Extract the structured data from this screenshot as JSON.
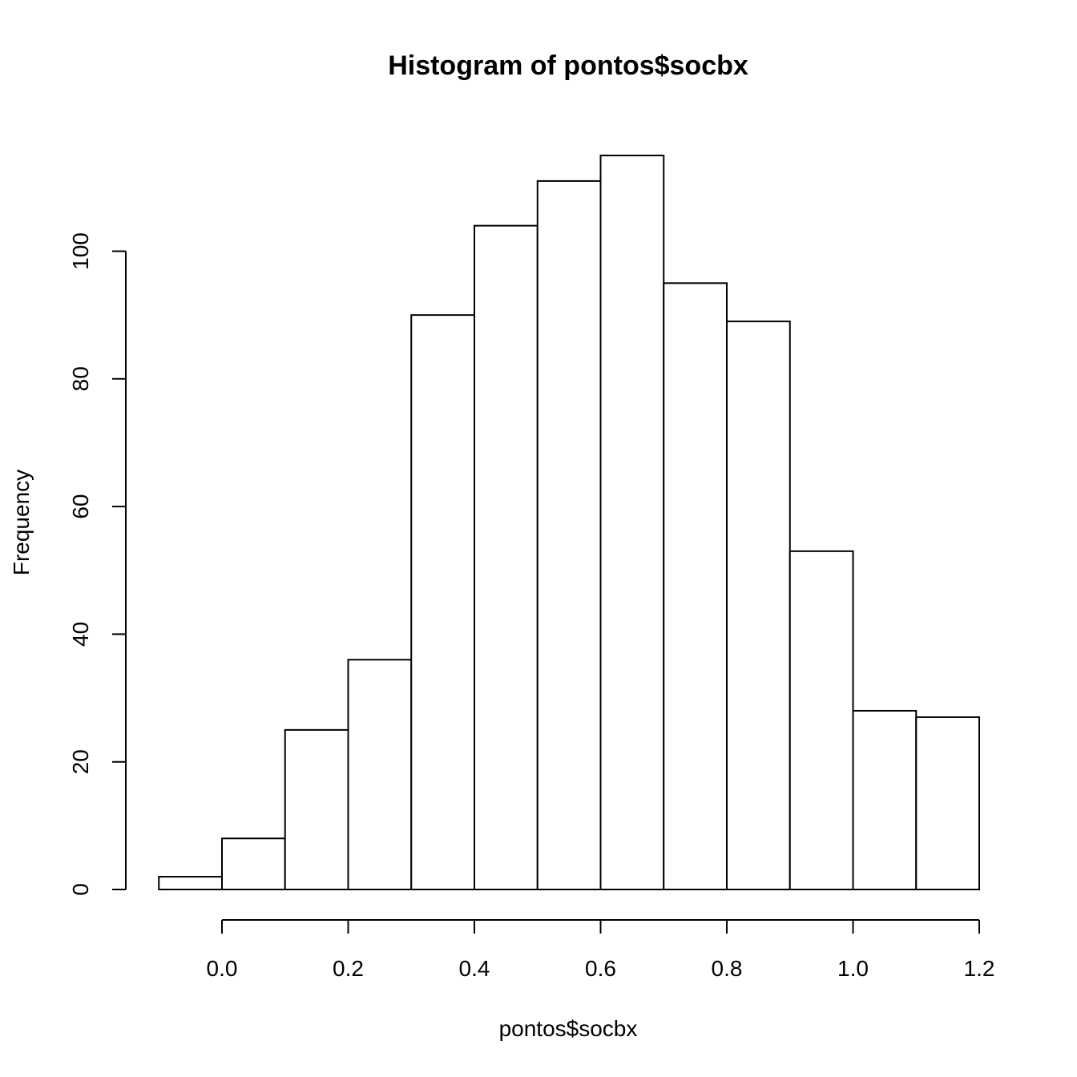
{
  "chart_data": {
    "type": "bar",
    "title": "Histogram of pontos$socbx",
    "xlabel": "pontos$socbx",
    "ylabel": "Frequency",
    "bin_edges": [
      -0.1,
      0.0,
      0.1,
      0.2,
      0.3,
      0.4,
      0.5,
      0.6,
      0.7,
      0.8,
      0.9,
      1.0,
      1.1,
      1.2
    ],
    "values": [
      2,
      8,
      25,
      36,
      90,
      104,
      111,
      115,
      95,
      89,
      53,
      28,
      27
    ],
    "xlim": [
      -0.1,
      1.2
    ],
    "ylim": [
      0,
      115
    ],
    "x_ticks": [
      "0.0",
      "0.2",
      "0.4",
      "0.6",
      "0.8",
      "1.0",
      "1.2"
    ],
    "y_ticks": [
      "0",
      "20",
      "40",
      "60",
      "80",
      "100"
    ],
    "grid": false,
    "bar_fill": "#ffffff",
    "bar_stroke": "#000000"
  }
}
